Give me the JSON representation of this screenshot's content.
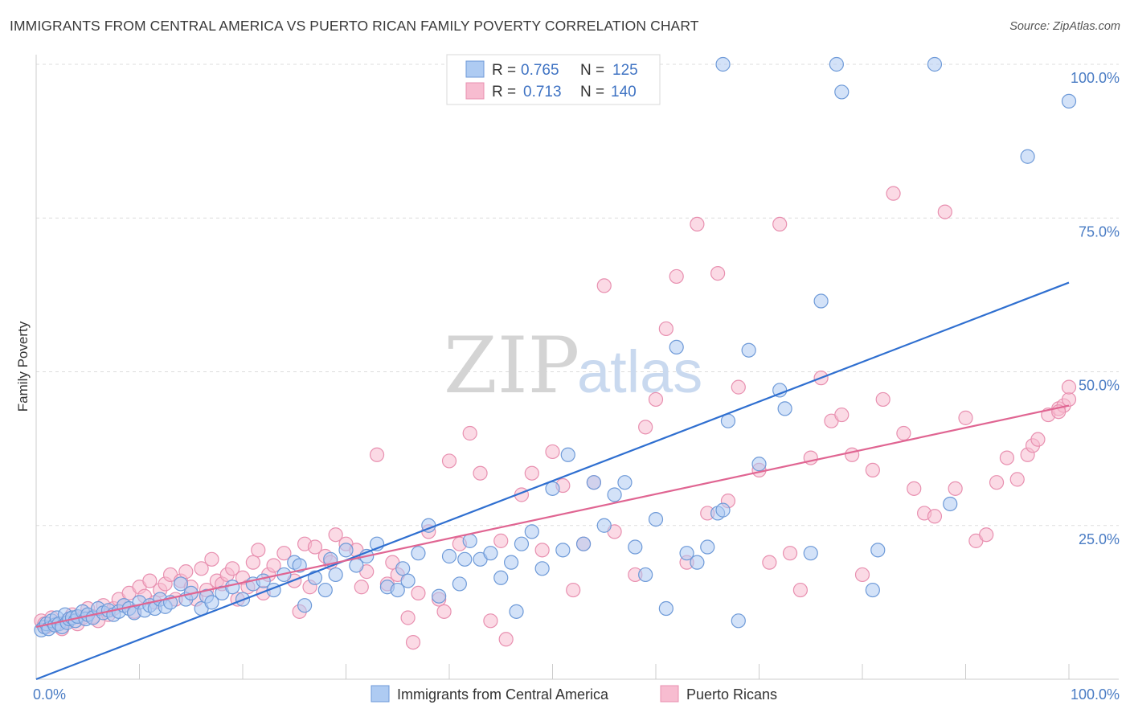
{
  "title": "IMMIGRANTS FROM CENTRAL AMERICA VS PUERTO RICAN FAMILY POVERTY CORRELATION CHART",
  "source": "Source: ZipAtlas.com",
  "watermark": {
    "zip": "ZIP",
    "atlas": "atlas"
  },
  "colors": {
    "blue": "#4a7cc4",
    "blue_fill": "#aecbf2",
    "blue_line": "#2f6fd0",
    "pink": "#e4679a",
    "pink_fill": "#f7bcd0",
    "pink_line": "#e06592",
    "grid": "#dddddd"
  },
  "legend": {
    "rows": [
      {
        "r_label": "R =",
        "r_value": "0.765",
        "n_label": "N =",
        "n_value": "125"
      },
      {
        "r_label": "R =",
        "r_value": "0.713",
        "n_label": "N =",
        "n_value": "140"
      }
    ]
  },
  "chart_data": {
    "type": "scatter",
    "title": "IMMIGRANTS FROM CENTRAL AMERICA VS PUERTO RICAN FAMILY POVERTY CORRELATION CHART",
    "xlabel": "",
    "ylabel": "Family Poverty",
    "xlim": [
      0,
      100
    ],
    "ylim": [
      0,
      100
    ],
    "x_tick_labels": [
      "0.0%",
      "100.0%"
    ],
    "y_tick_labels": [
      "100.0%",
      "75.0%",
      "50.0%",
      "25.0%"
    ],
    "y_ticks": [
      100,
      75,
      50,
      25
    ],
    "grid": "horizontal dashed",
    "legend_position": "top-center",
    "series": [
      {
        "name": "Immigrants from Central America",
        "color": "#4a7cc4",
        "trend": {
          "x0": 0,
          "y0": 0,
          "x1": 100,
          "y1": 64.5
        },
        "points": [
          [
            0.5,
            8
          ],
          [
            0.8,
            8.5
          ],
          [
            1,
            9
          ],
          [
            1.2,
            8.2
          ],
          [
            1.5,
            9.5
          ],
          [
            1.8,
            8.8
          ],
          [
            2,
            10
          ],
          [
            2.2,
            9
          ],
          [
            2.5,
            8.5
          ],
          [
            2.8,
            10.5
          ],
          [
            3,
            9.2
          ],
          [
            3.2,
            9.8
          ],
          [
            3.5,
            10
          ],
          [
            3.8,
            9.5
          ],
          [
            4,
            10.2
          ],
          [
            4.5,
            11
          ],
          [
            4.8,
            9.8
          ],
          [
            5,
            10.5
          ],
          [
            5.5,
            10
          ],
          [
            6,
            11.5
          ],
          [
            6.5,
            10.8
          ],
          [
            7,
            11.2
          ],
          [
            7.5,
            10.5
          ],
          [
            8,
            11
          ],
          [
            8.5,
            12
          ],
          [
            9,
            11.5
          ],
          [
            9.5,
            10.8
          ],
          [
            10,
            12.5
          ],
          [
            10.5,
            11.2
          ],
          [
            11,
            12
          ],
          [
            11.5,
            11.5
          ],
          [
            12,
            13
          ],
          [
            12.5,
            11.8
          ],
          [
            13,
            12.5
          ],
          [
            14,
            15.5
          ],
          [
            14.5,
            13
          ],
          [
            15,
            14
          ],
          [
            16,
            11.5
          ],
          [
            16.5,
            13.5
          ],
          [
            17,
            12.5
          ],
          [
            18,
            14
          ],
          [
            19,
            15
          ],
          [
            20,
            13
          ],
          [
            21,
            15.5
          ],
          [
            22,
            16
          ],
          [
            23,
            14.5
          ],
          [
            24,
            17
          ],
          [
            25,
            19
          ],
          [
            25.5,
            18.5
          ],
          [
            26,
            12
          ],
          [
            27,
            16.5
          ],
          [
            28,
            14.5
          ],
          [
            28.5,
            19.5
          ],
          [
            29,
            17
          ],
          [
            30,
            21
          ],
          [
            31,
            18.5
          ],
          [
            32,
            20
          ],
          [
            33,
            22
          ],
          [
            34,
            15
          ],
          [
            35,
            14.5
          ],
          [
            35.5,
            18
          ],
          [
            36,
            16
          ],
          [
            37,
            20.5
          ],
          [
            38,
            25
          ],
          [
            39,
            13.5
          ],
          [
            40,
            20
          ],
          [
            41,
            15.5
          ],
          [
            41.5,
            19.5
          ],
          [
            42,
            22.5
          ],
          [
            43,
            19.5
          ],
          [
            44,
            20.5
          ],
          [
            45,
            16.5
          ],
          [
            46,
            19
          ],
          [
            46.5,
            11
          ],
          [
            47,
            22
          ],
          [
            48,
            24
          ],
          [
            49,
            18
          ],
          [
            50,
            31
          ],
          [
            51,
            21
          ],
          [
            51.5,
            36.5
          ],
          [
            53,
            22
          ],
          [
            54,
            32
          ],
          [
            55,
            25
          ],
          [
            56,
            30
          ],
          [
            57,
            32
          ],
          [
            58,
            21.5
          ],
          [
            59,
            17
          ],
          [
            60,
            26
          ],
          [
            61,
            11.5
          ],
          [
            62,
            54
          ],
          [
            63,
            20.5
          ],
          [
            64,
            19
          ],
          [
            65,
            21.5
          ],
          [
            66,
            27
          ],
          [
            66.5,
            27.5
          ],
          [
            67,
            42
          ],
          [
            68,
            9.5
          ],
          [
            69,
            53.5
          ],
          [
            70,
            35
          ],
          [
            72,
            47
          ],
          [
            72.5,
            44
          ],
          [
            75,
            20.5
          ],
          [
            76,
            61.5
          ],
          [
            66.5,
            100
          ],
          [
            87,
            100
          ],
          [
            77.5,
            100
          ],
          [
            78,
            95.5
          ],
          [
            81,
            14.5
          ],
          [
            81.5,
            21
          ],
          [
            100,
            94
          ],
          [
            96,
            85
          ],
          [
            88.5,
            28.5
          ]
        ]
      },
      {
        "name": "Puerto Ricans",
        "color": "#e4679a",
        "trend": {
          "x0": 0,
          "y0": 8.5,
          "x1": 100,
          "y1": 44.5
        },
        "points": [
          [
            0.5,
            9.5
          ],
          [
            0.8,
            9
          ],
          [
            1,
            8.5
          ],
          [
            1.5,
            10
          ],
          [
            2,
            9
          ],
          [
            2.5,
            8.2
          ],
          [
            3,
            9.5
          ],
          [
            3.5,
            10.5
          ],
          [
            4,
            9
          ],
          [
            4.5,
            10
          ],
          [
            5,
            11.5
          ],
          [
            5.5,
            10.2
          ],
          [
            6,
            9.5
          ],
          [
            6.5,
            12
          ],
          [
            7,
            10.5
          ],
          [
            7.5,
            11.5
          ],
          [
            8,
            13
          ],
          [
            8.5,
            12
          ],
          [
            9,
            14
          ],
          [
            9.5,
            11
          ],
          [
            10,
            15
          ],
          [
            10.5,
            13.5
          ],
          [
            11,
            16
          ],
          [
            11.5,
            12.5
          ],
          [
            12,
            14.5
          ],
          [
            12.5,
            15.5
          ],
          [
            13,
            17
          ],
          [
            13.5,
            13
          ],
          [
            14,
            16
          ],
          [
            14.5,
            17.5
          ],
          [
            15,
            15
          ],
          [
            15.5,
            13
          ],
          [
            16,
            18
          ],
          [
            16.5,
            14.5
          ],
          [
            17,
            19.5
          ],
          [
            17.5,
            16
          ],
          [
            18,
            15.5
          ],
          [
            18.5,
            17
          ],
          [
            19,
            18
          ],
          [
            19.5,
            13
          ],
          [
            20,
            16.5
          ],
          [
            20.5,
            15
          ],
          [
            21,
            19
          ],
          [
            21.5,
            21
          ],
          [
            22,
            14
          ],
          [
            22.5,
            17
          ],
          [
            23,
            18.5
          ],
          [
            24,
            20.5
          ],
          [
            25,
            16
          ],
          [
            25.5,
            11
          ],
          [
            26,
            22
          ],
          [
            26.5,
            15
          ],
          [
            27,
            21.5
          ],
          [
            28,
            20
          ],
          [
            28.5,
            19
          ],
          [
            29,
            23.5
          ],
          [
            30,
            22
          ],
          [
            31,
            21
          ],
          [
            31.5,
            15
          ],
          [
            32,
            17.5
          ],
          [
            33,
            36.5
          ],
          [
            34,
            15.5
          ],
          [
            34.5,
            19
          ],
          [
            35,
            17
          ],
          [
            36,
            10
          ],
          [
            36.5,
            6
          ],
          [
            37,
            14
          ],
          [
            38,
            24
          ],
          [
            39,
            13
          ],
          [
            39.5,
            11
          ],
          [
            40,
            35.5
          ],
          [
            41,
            22
          ],
          [
            42,
            40
          ],
          [
            43,
            33.5
          ],
          [
            44,
            9.5
          ],
          [
            45,
            22.5
          ],
          [
            45.5,
            6.5
          ],
          [
            47,
            30
          ],
          [
            48,
            33.5
          ],
          [
            49,
            21
          ],
          [
            50,
            37
          ],
          [
            51,
            31.5
          ],
          [
            52,
            14.5
          ],
          [
            53,
            22
          ],
          [
            54,
            32
          ],
          [
            55,
            64
          ],
          [
            56,
            24
          ],
          [
            58,
            17
          ],
          [
            59,
            41
          ],
          [
            60,
            45.5
          ],
          [
            61,
            57
          ],
          [
            62,
            65.5
          ],
          [
            63,
            19
          ],
          [
            64,
            74
          ],
          [
            65,
            27
          ],
          [
            66,
            66
          ],
          [
            67,
            29
          ],
          [
            68,
            47.5
          ],
          [
            70,
            34
          ],
          [
            71,
            19
          ],
          [
            72,
            74
          ],
          [
            73,
            20.5
          ],
          [
            74,
            14.5
          ],
          [
            75,
            36
          ],
          [
            76,
            49
          ],
          [
            77,
            42
          ],
          [
            78,
            43
          ],
          [
            79,
            36.5
          ],
          [
            80,
            17
          ],
          [
            81,
            34
          ],
          [
            82,
            45.5
          ],
          [
            83,
            79
          ],
          [
            84,
            40
          ],
          [
            85,
            31
          ],
          [
            86,
            27
          ],
          [
            87,
            26.5
          ],
          [
            88,
            76
          ],
          [
            89,
            31
          ],
          [
            90,
            42.5
          ],
          [
            91,
            22.5
          ],
          [
            92,
            23.5
          ],
          [
            93,
            32
          ],
          [
            94,
            36
          ],
          [
            95,
            32.5
          ],
          [
            96,
            36.5
          ],
          [
            96.5,
            38
          ],
          [
            97,
            39
          ],
          [
            98,
            43
          ],
          [
            99,
            44
          ],
          [
            99.5,
            44.5
          ],
          [
            100,
            45.5
          ],
          [
            100,
            47.5
          ],
          [
            99,
            43.5
          ]
        ]
      }
    ]
  },
  "bottom_legend": [
    "Immigrants from Central America",
    "Puerto Ricans"
  ]
}
